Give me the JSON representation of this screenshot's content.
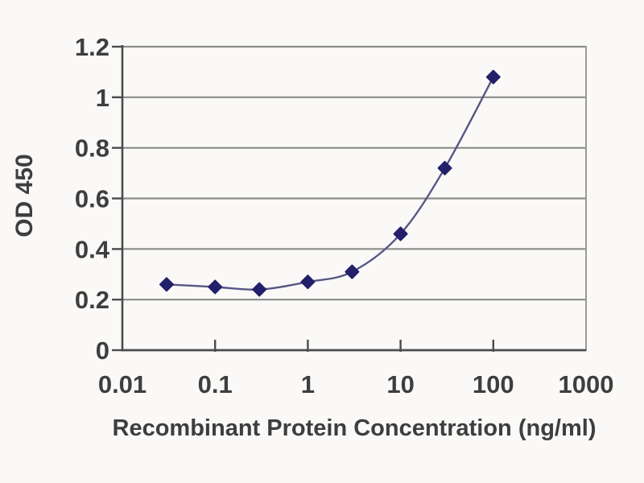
{
  "chart_data": {
    "type": "line",
    "title": "",
    "xlabel": "Recombinant Protein Concentration (ng/ml)",
    "ylabel": "OD 450",
    "x_scale": "log",
    "xlim": [
      0.01,
      1000
    ],
    "ylim": [
      0,
      1.2
    ],
    "grid": "horizontal",
    "legend": "none",
    "smooth": true,
    "marker": "diamond",
    "x": [
      0.03,
      0.1,
      0.3,
      1,
      3,
      10,
      30,
      100
    ],
    "y": [
      0.26,
      0.25,
      0.24,
      0.27,
      0.31,
      0.46,
      0.72,
      1.08
    ],
    "x_ticks": [
      0.01,
      0.1,
      1,
      10,
      100,
      1000
    ],
    "x_tick_labels": [
      "0.01",
      "0.1",
      "1",
      "10",
      "100",
      "1000"
    ],
    "y_ticks": [
      0,
      0.2,
      0.4,
      0.6,
      0.8,
      1,
      1.2
    ],
    "y_tick_labels": [
      "0",
      "0.2",
      "0.4",
      "0.6",
      "0.8",
      "1",
      "1.2"
    ],
    "colors": {
      "background": "#faf9f7",
      "line": "#565685",
      "marker": "#221f6b",
      "grid": "#8b8b8b",
      "axis": "#4c4c4c",
      "border": "#9b9b9b",
      "text": "#3e3e3e"
    }
  }
}
